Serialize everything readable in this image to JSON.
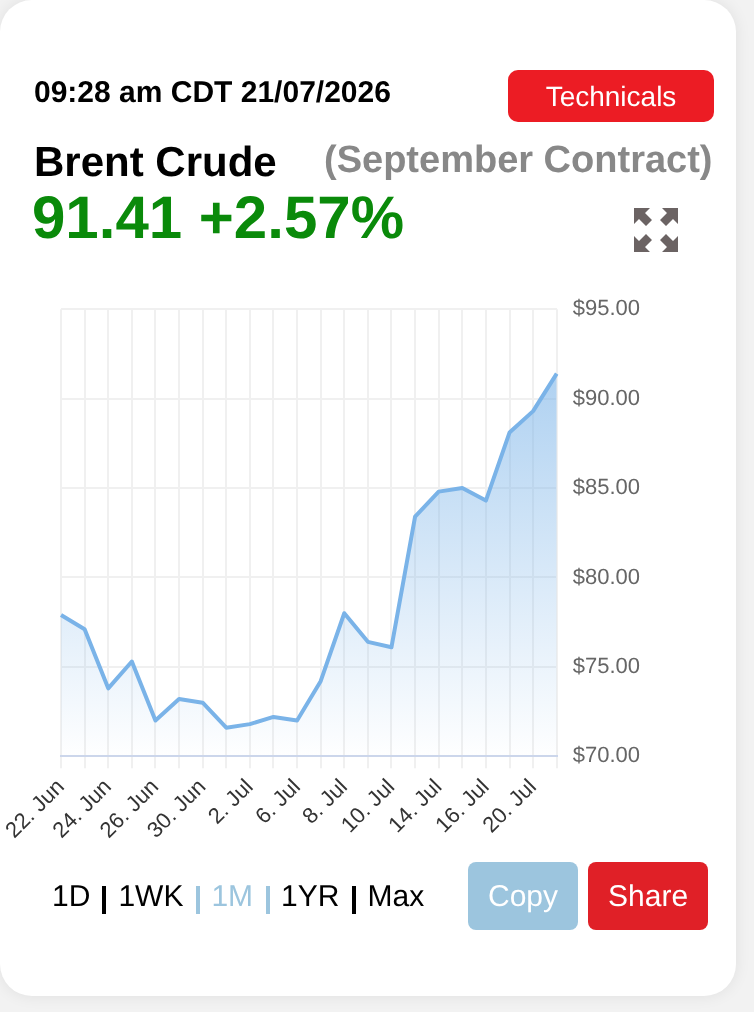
{
  "chart_data": {
    "type": "area",
    "title": "Brent Crude",
    "subtitle": "(September Contract)",
    "annotations": [
      "09:28 am CDT 21/07/2026",
      "91.41 +2.57%",
      "Technicals",
      "1D",
      "1WK",
      "1M",
      "1YR",
      "Max",
      "Copy",
      "Share"
    ],
    "categories": [
      "22. Jun",
      null,
      "24. Jun",
      null,
      "26. Jun",
      null,
      "30. Jun",
      null,
      "2. Jul",
      null,
      "6. Jul",
      null,
      "8. Jul",
      null,
      "10. Jul",
      null,
      "14. Jul",
      null,
      "16. Jul",
      null,
      "20. Jul",
      null
    ],
    "series": [
      {
        "color": "#7ab3e8",
        "values": [
          77.9,
          77.1,
          73.8,
          75.3,
          72.0,
          73.2,
          73.0,
          71.6,
          71.8,
          72.2,
          72.0,
          74.2,
          78.0,
          76.4,
          76.1,
          83.4,
          84.8,
          85.0,
          84.3,
          88.1,
          89.3,
          91.4
        ]
      }
    ],
    "ylim": [
      70,
      95
    ],
    "yticks": [
      {
        "value": 70,
        "label": "$70.00"
      },
      {
        "value": 75,
        "label": "$75.00"
      },
      {
        "value": 80,
        "label": "$80.00"
      },
      {
        "value": 85,
        "label": "$85.00"
      },
      {
        "value": 90,
        "label": "$90.00"
      },
      {
        "value": 95,
        "label": "$95.00"
      }
    ],
    "grid": true,
    "legend": false,
    "marker": "none",
    "line_style": "solid"
  }
}
